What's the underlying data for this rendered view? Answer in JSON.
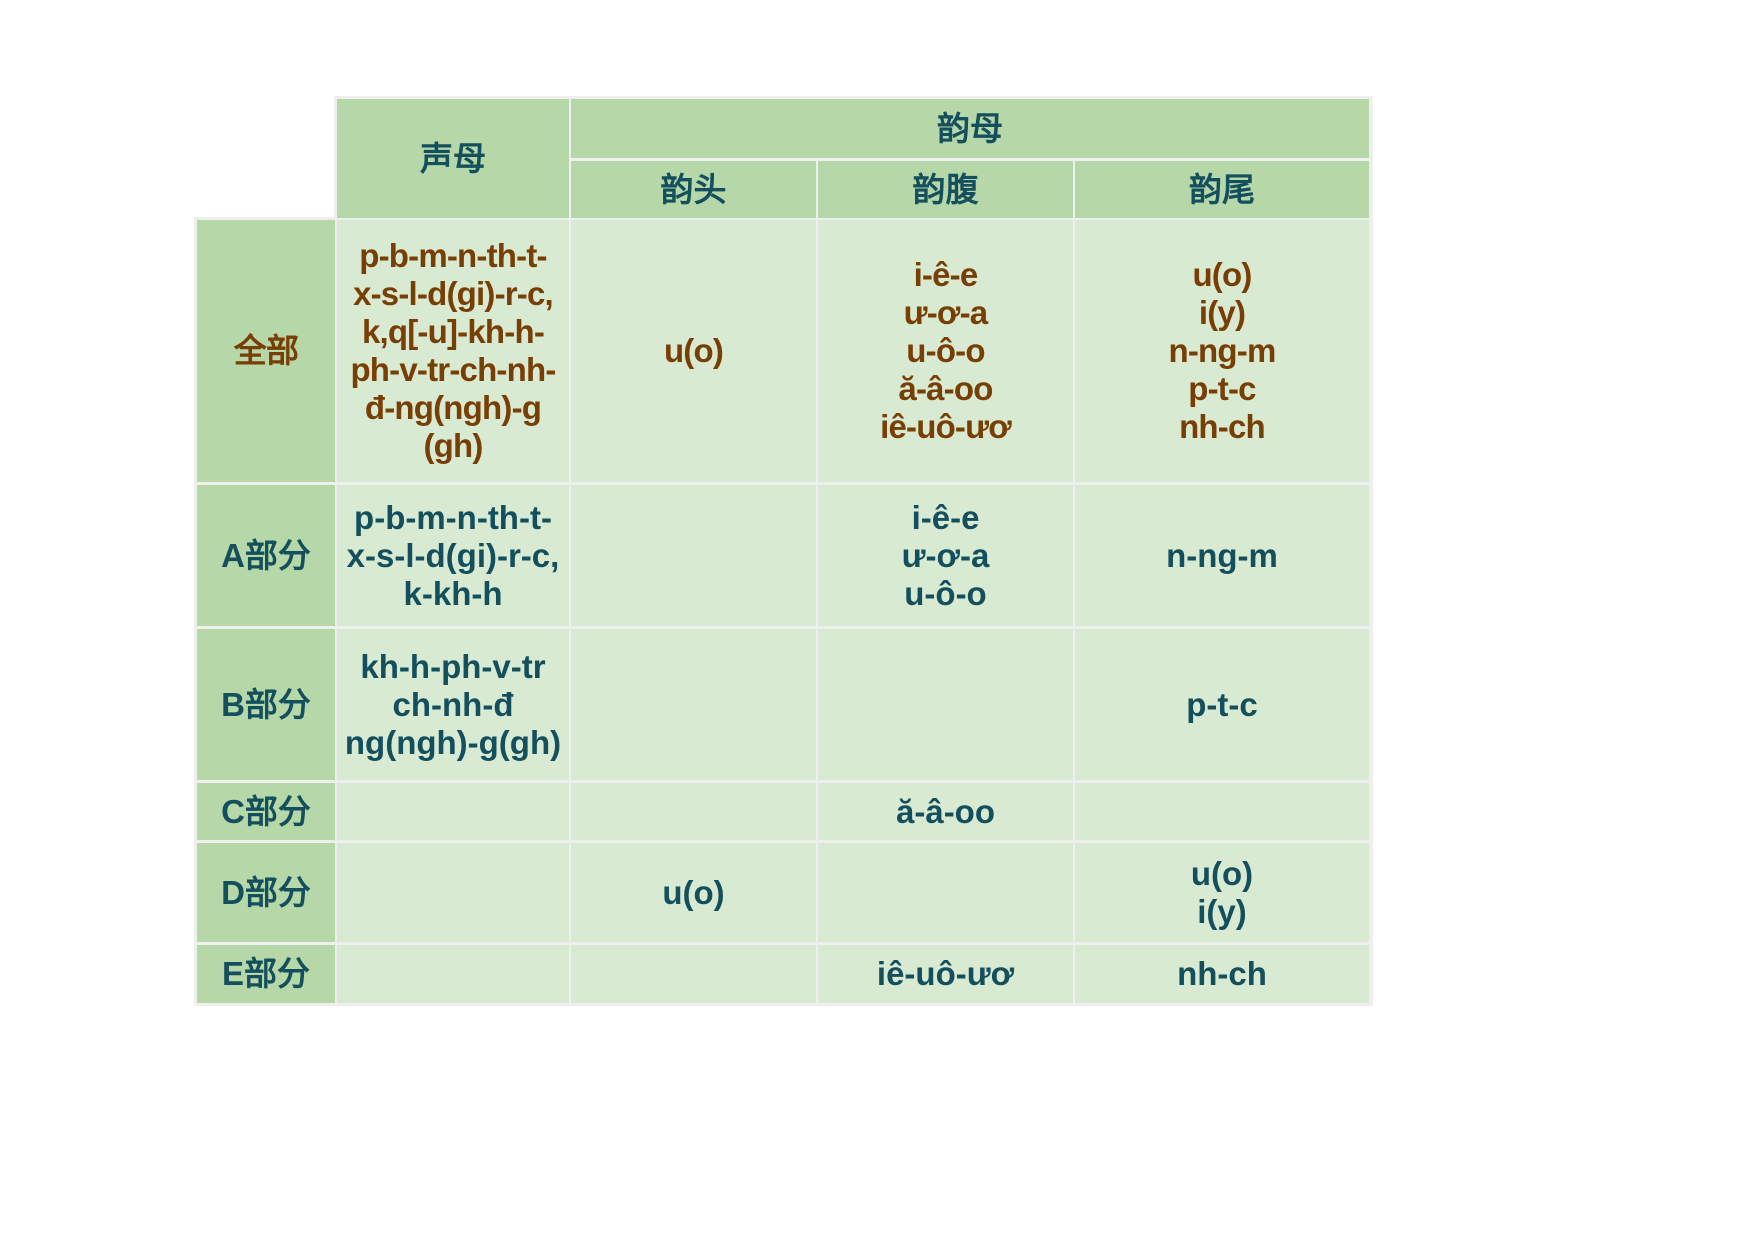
{
  "colors": {
    "header_bg": "#b6d7a8",
    "body_bg": "#d9ead3",
    "teal_text": "#134f5c",
    "brown_text": "#783f04",
    "grid": "#efefef"
  },
  "header": {
    "initial": "声母",
    "final": "韵母",
    "medial": "韵头",
    "nucleus": "韵腹",
    "coda": "韵尾"
  },
  "rows": [
    {
      "label": "全部",
      "initial": "p-b-m-n-th-t-\nx-s-l-d(gi)-r-c,\nk,q[-u]-kh-h-\nph-v-tr-ch-nh-\nđ-ng(ngh)-g\n(gh)",
      "medial": "u(o)",
      "nucleus": "i-ê-e\nư-ơ-a\nu-ô-o\nă-â-oo\niê-uô-ươ",
      "coda": "u(o)\ni(y)\nn-ng-m\np-t-c\nnh-ch"
    },
    {
      "label": "A部分",
      "initial": "p-b-m-n-th-t-\nx-s-l-d(gi)-r-c,\nk-kh-h",
      "medial": "",
      "nucleus": "i-ê-e\nư-ơ-a\nu-ô-o",
      "coda": "n-ng-m"
    },
    {
      "label": "B部分",
      "initial": "kh-h-ph-v-tr\nch-nh-đ\nng(ngh)-g(gh)",
      "medial": "",
      "nucleus": "",
      "coda": "p-t-c"
    },
    {
      "label": "C部分",
      "initial": "",
      "medial": "",
      "nucleus": "ă-â-oo",
      "coda": ""
    },
    {
      "label": "D部分",
      "initial": "",
      "medial": "u(o)",
      "nucleus": "",
      "coda": "u(o)\ni(y)"
    },
    {
      "label": "E部分",
      "initial": "",
      "medial": "",
      "nucleus": "iê-uô-ươ",
      "coda": "nh-ch"
    }
  ]
}
